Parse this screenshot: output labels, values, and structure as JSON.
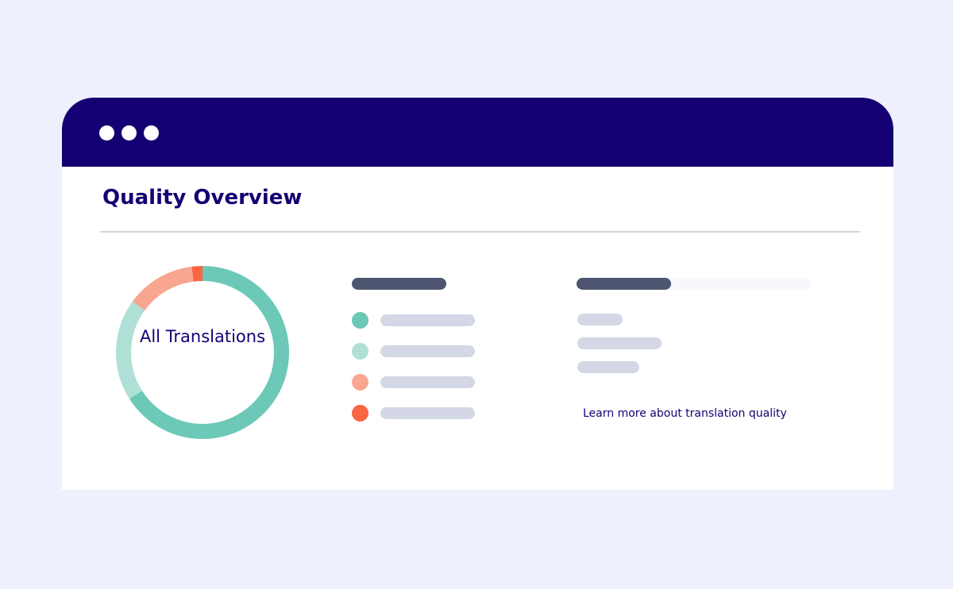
{
  "header": {
    "title": "Quality Overview"
  },
  "donut": {
    "center_label": "All Translations",
    "segments": [
      {
        "value": 66,
        "color": "#6cc8b7"
      },
      {
        "value": 19,
        "color": "#aee0d6"
      },
      {
        "value": 13,
        "color": "#f8a68f"
      },
      {
        "value": 2,
        "color": "#fb6541"
      }
    ]
  },
  "link": "Learn more about translation quality"
}
